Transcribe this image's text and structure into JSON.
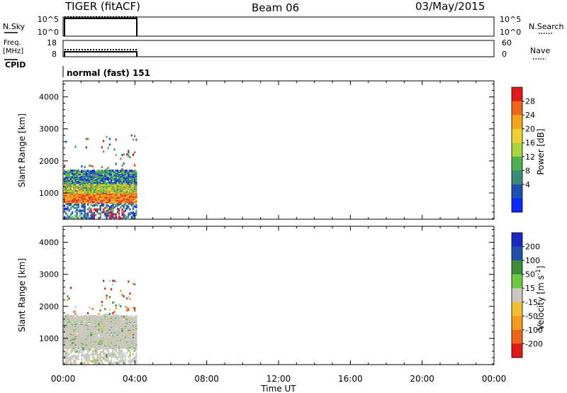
{
  "header": {
    "station": "TIGER (fitACF)",
    "beam": "Beam 06",
    "date": "03/May/2015"
  },
  "left_labels": {
    "nsky": "N.Sky",
    "freq": "Freq.",
    "mhz": "[MHz]",
    "cpid": "CPID"
  },
  "right_labels": {
    "nsearch": "N.Search",
    "nave": "Nave"
  },
  "noise_axis": {
    "upper": "10^5",
    "lower": "10^0"
  },
  "freq_axis": {
    "upper": "18",
    "lower": "8"
  },
  "nave_axis": {
    "upper": "60",
    "lower": "0"
  },
  "cpid_text": "normal (fast) 151",
  "chart_data": [
    {
      "type": "heatmap",
      "panel": "power",
      "ylabel": "Slant Range [km]",
      "xlabel": "",
      "x_ticks": [
        "00:00",
        "04:00",
        "08:00",
        "12:00",
        "16:00",
        "20:00",
        "00:00"
      ],
      "x_range_hours": [
        0,
        24
      ],
      "data_end_hours": 4.1,
      "ylim": [
        180,
        4500
      ],
      "y_ticks": [
        1000,
        2000,
        3000,
        4000
      ],
      "colorbar": {
        "label": "Power [dB]",
        "ticks": [
          "4",
          "8",
          "12",
          "16",
          "20",
          "24",
          "28"
        ],
        "colors": [
          "#0a28ff",
          "#1f4fb4",
          "#3a8a78",
          "#4cb050",
          "#a6d53c",
          "#f0d030",
          "#f5a21d",
          "#f06418",
          "#e41818"
        ]
      },
      "bands": [
        {
          "from_km": 200,
          "to_km": 700,
          "level": "mixed"
        },
        {
          "from_km": 700,
          "to_km": 1000,
          "level": "high"
        },
        {
          "from_km": 1000,
          "to_km": 1700,
          "level": "mixed"
        },
        {
          "from_km": 1900,
          "to_km": 2700,
          "level": "sparse"
        }
      ]
    },
    {
      "type": "heatmap",
      "panel": "velocity",
      "ylabel": "Slant Range [km]",
      "xlabel": "Time UT",
      "x_ticks": [
        "00:00",
        "04:00",
        "08:00",
        "12:00",
        "16:00",
        "20:00",
        "00:00"
      ],
      "x_range_hours": [
        0,
        24
      ],
      "data_end_hours": 4.1,
      "ylim": [
        180,
        4500
      ],
      "y_ticks": [
        1000,
        2000,
        3000,
        4000
      ],
      "colorbar": {
        "label": "Velocity [m s",
        "label_sup": "-1",
        "label_end": "]",
        "ticks": [
          "200",
          "100",
          "50",
          "15",
          "-15",
          "-50",
          "-100",
          "-200"
        ],
        "colors": [
          "#1a28c8",
          "#2050a8",
          "#3c8c3c",
          "#6cc83c",
          "#c8c8c0",
          "#f0c030",
          "#f59a1c",
          "#f06418",
          "#e41818"
        ]
      },
      "bands": [
        {
          "from_km": 200,
          "to_km": 1750,
          "level": "ground"
        },
        {
          "from_km": 1900,
          "to_km": 2700,
          "level": "sparse"
        }
      ]
    }
  ]
}
